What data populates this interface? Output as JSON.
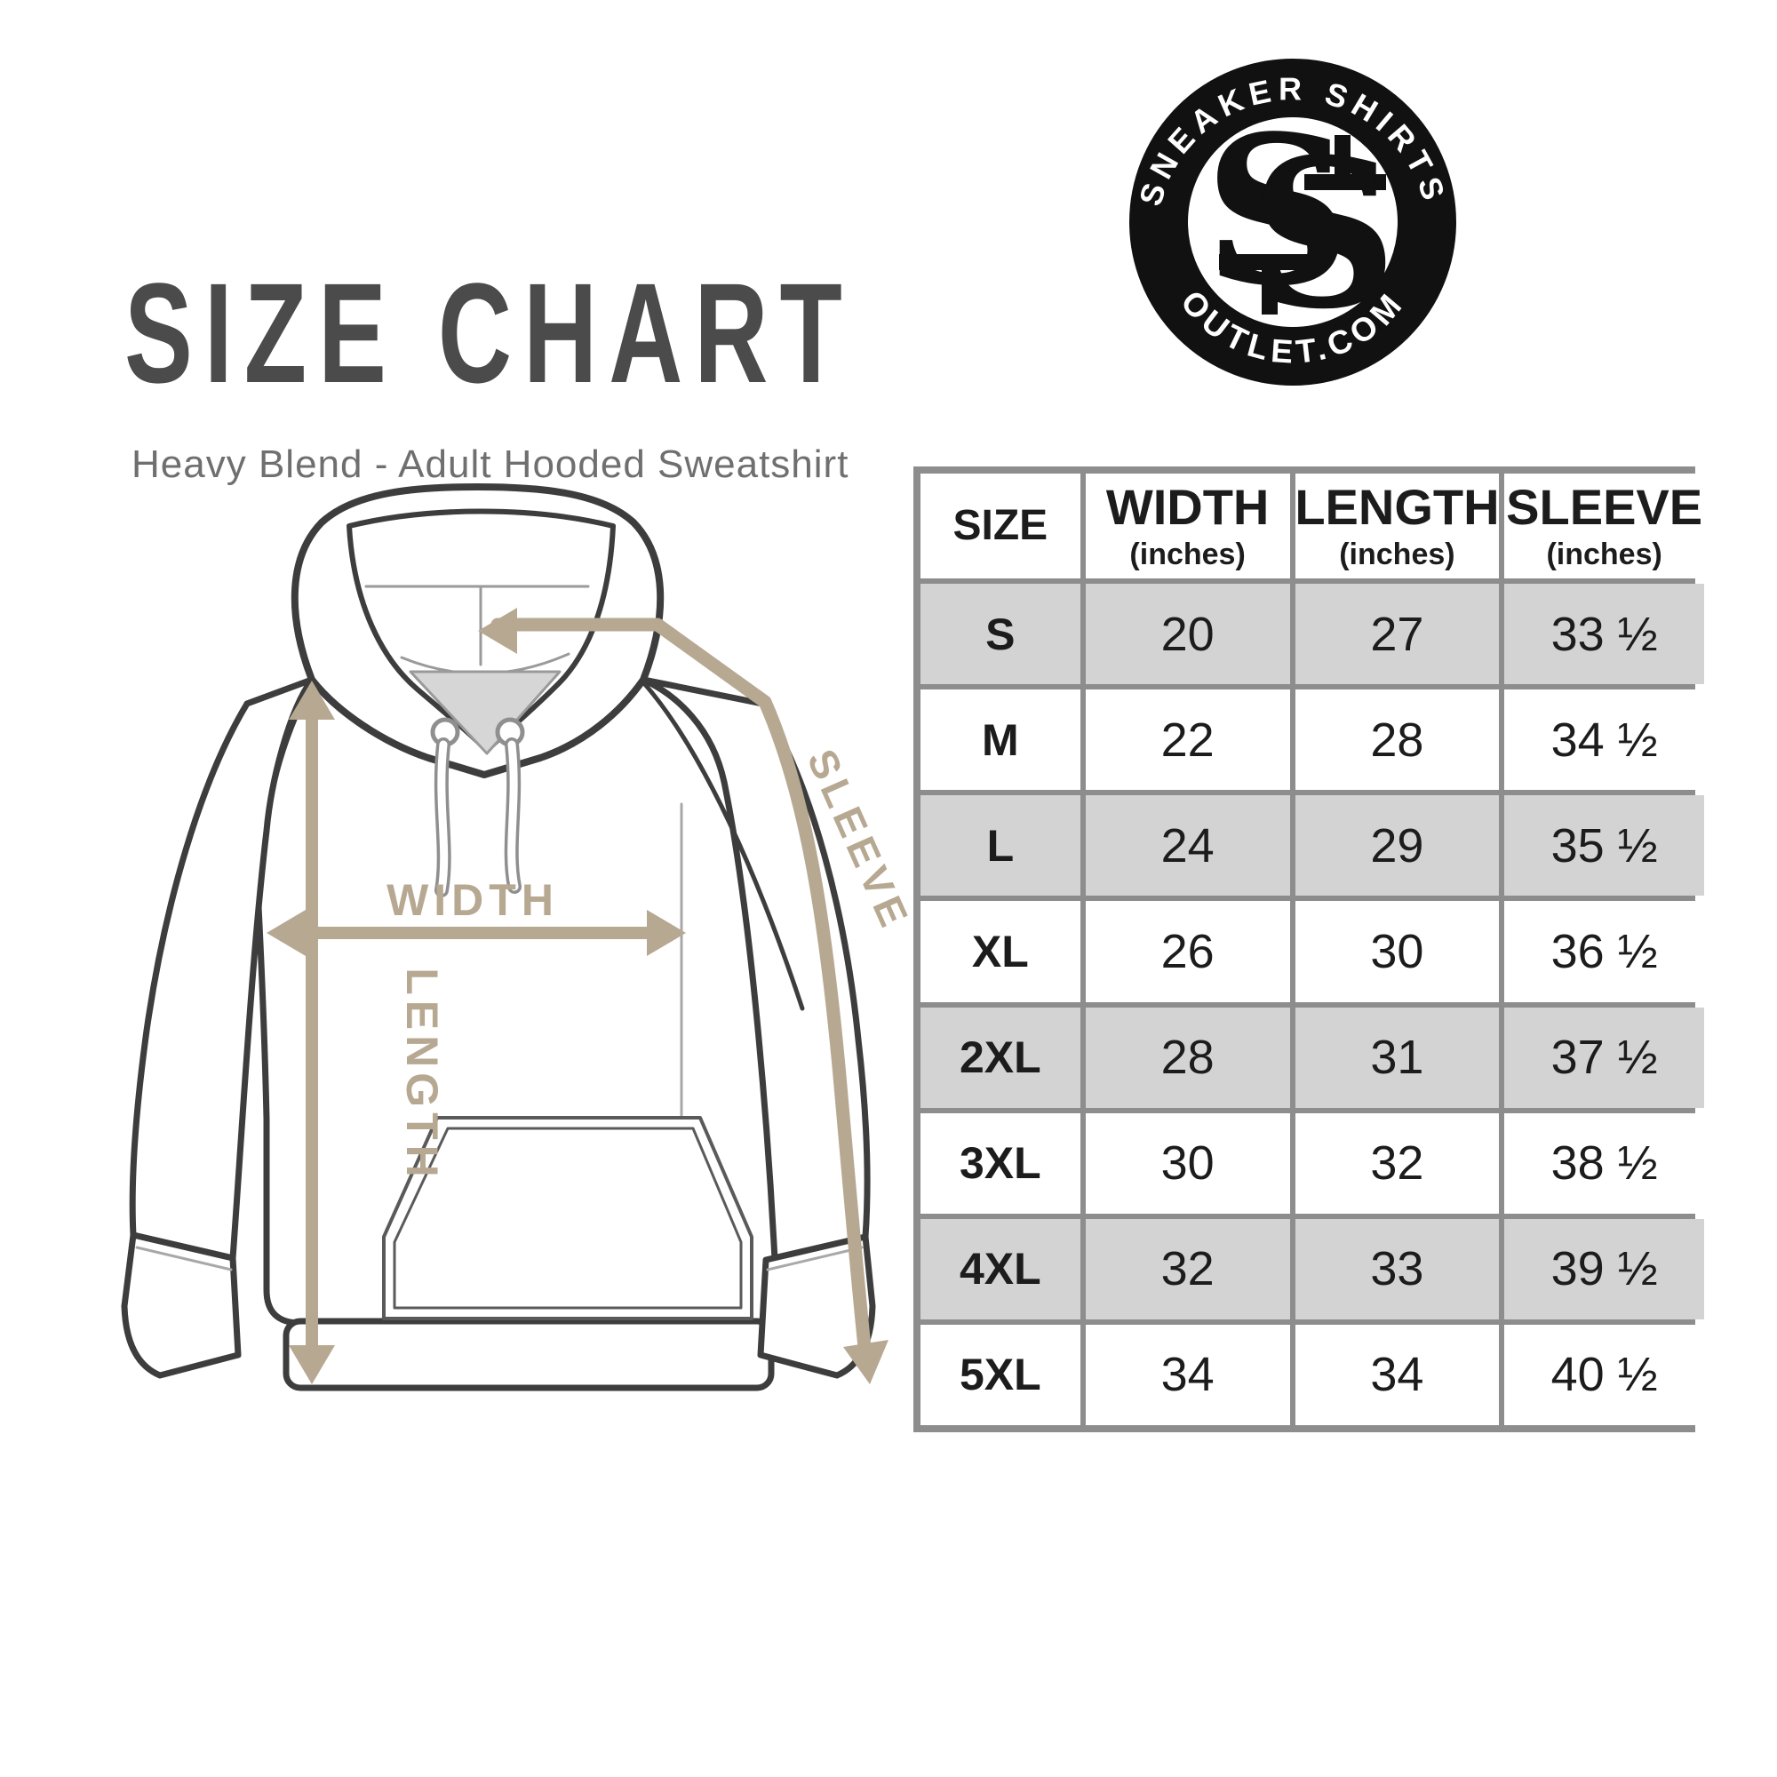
{
  "title": "SIZE CHART",
  "subtitle": "Heavy Blend - Adult Hooded Sweatshirt",
  "logo": {
    "top_text": "SNEAKER SHIRTS",
    "bottom_text": "OUTLET.COM",
    "monogram_left": "S",
    "monogram_right": "S"
  },
  "diagram": {
    "labels": {
      "width": "WIDTH",
      "length": "LENGTH",
      "sleeve": "SLEEVE"
    },
    "colors": {
      "arrow": "#b7a892",
      "outline": "#3d3d3d",
      "seam": "#a8a8a8",
      "collar_fill": "#d6d6d6",
      "pocket_line": "#5a5a5a"
    }
  },
  "table": {
    "columns": [
      {
        "label": "SIZE",
        "sub": ""
      },
      {
        "label": "WIDTH",
        "sub": "(inches)"
      },
      {
        "label": "LENGTH",
        "sub": "(inches)"
      },
      {
        "label": "SLEEVE",
        "sub": "(inches)"
      }
    ],
    "rows": [
      {
        "size": "S",
        "width": "20",
        "length": "27",
        "sleeve": "33 ½"
      },
      {
        "size": "M",
        "width": "22",
        "length": "28",
        "sleeve": "34 ½"
      },
      {
        "size": "L",
        "width": "24",
        "length": "29",
        "sleeve": "35 ½"
      },
      {
        "size": "XL",
        "width": "26",
        "length": "30",
        "sleeve": "36 ½"
      },
      {
        "size": "2XL",
        "width": "28",
        "length": "31",
        "sleeve": "37 ½"
      },
      {
        "size": "3XL",
        "width": "30",
        "length": "32",
        "sleeve": "38 ½"
      },
      {
        "size": "4XL",
        "width": "32",
        "length": "33",
        "sleeve": "39 ½"
      },
      {
        "size": "5XL",
        "width": "34",
        "length": "34",
        "sleeve": "40 ½"
      }
    ],
    "colors": {
      "border": "#8d8d8d",
      "row_alt": "#d3d3d3",
      "text": "#1c1c1c"
    }
  }
}
